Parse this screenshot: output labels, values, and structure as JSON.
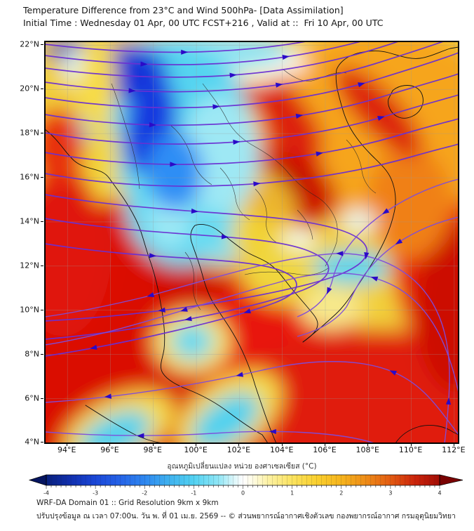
{
  "header": {
    "title": "Temperature Difference from 23°C and Wind 500hPa- [Data Assimilation]",
    "subtitle": "Initial Time : Wednesday 01 Apr, 00 UTC FCST+216 , Valid at ::  Fri 10 Apr, 00 UTC"
  },
  "map": {
    "x_axis": {
      "tick_labels": [
        "94°E",
        "96°E",
        "98°E",
        "100°E",
        "102°E",
        "104°E",
        "106°E",
        "108°E",
        "110°E",
        "112°E"
      ],
      "tick_values": [
        94,
        96,
        98,
        100,
        102,
        104,
        106,
        108,
        110,
        112
      ]
    },
    "y_axis": {
      "tick_labels": [
        "22°N",
        "20°N",
        "18°N",
        "16°N",
        "14°N",
        "12°N",
        "10°N",
        "8°N",
        "6°N",
        "4°N"
      ],
      "tick_values": [
        22,
        20,
        18,
        16,
        14,
        12,
        10,
        8,
        6,
        4
      ]
    }
  },
  "wind": {
    "streamline_color": "#6a2fd2",
    "streamline_color_light": "#7d4cdb",
    "arrow_color": "#2a0ac8"
  },
  "colorbar": {
    "label": "อุณหภูมิเปลี่ยนแปลง หน่วย องศาเซลเซียส (°C)",
    "tick_labels": [
      "-4",
      "-3",
      "-2",
      "-1",
      "0",
      "1",
      "2",
      "3",
      "4"
    ],
    "tick_values": [
      -4,
      -3,
      -2,
      -1,
      0,
      1,
      2,
      3,
      4
    ],
    "min": -4,
    "max": 4,
    "left_arrow_color": "#051560",
    "right_arrow_color": "#7a0202",
    "palette": [
      {
        "v": -4.0,
        "c": "#08207e"
      },
      {
        "v": -3.5,
        "c": "#1130b0"
      },
      {
        "v": -3.0,
        "c": "#1a47d8"
      },
      {
        "v": -2.5,
        "c": "#2563e8"
      },
      {
        "v": -2.0,
        "c": "#2e87f0"
      },
      {
        "v": -1.5,
        "c": "#3fb2ef"
      },
      {
        "v": -1.0,
        "c": "#52d2f2"
      },
      {
        "v": -0.5,
        "c": "#8fe6f6"
      },
      {
        "v": -0.2,
        "c": "#d8f6fa"
      },
      {
        "v": 0.0,
        "c": "#ffffff"
      },
      {
        "v": 0.2,
        "c": "#fffce4"
      },
      {
        "v": 0.5,
        "c": "#fdf2a6"
      },
      {
        "v": 1.0,
        "c": "#fbe35f"
      },
      {
        "v": 1.5,
        "c": "#fad02e"
      },
      {
        "v": 2.0,
        "c": "#f6b41c"
      },
      {
        "v": 2.5,
        "c": "#ef8c17"
      },
      {
        "v": 3.0,
        "c": "#e35b11"
      },
      {
        "v": 3.5,
        "c": "#cc240b"
      },
      {
        "v": 4.0,
        "c": "#a30d04"
      }
    ]
  },
  "footer": {
    "line1": "WRF-DA Domain 01 :: Grid Resolution 9km x 9km",
    "line2": "ปรับปรุงข้อมูล ณ เวลา 07:00น. วัน พ. ที่ 01 เม.ย. 2569 -- © ส่วนพยากรณ์อากาศเชิงตัวเลข กองพยากรณ์อากาศ กรมอุตุนิยมวิทยา"
  }
}
